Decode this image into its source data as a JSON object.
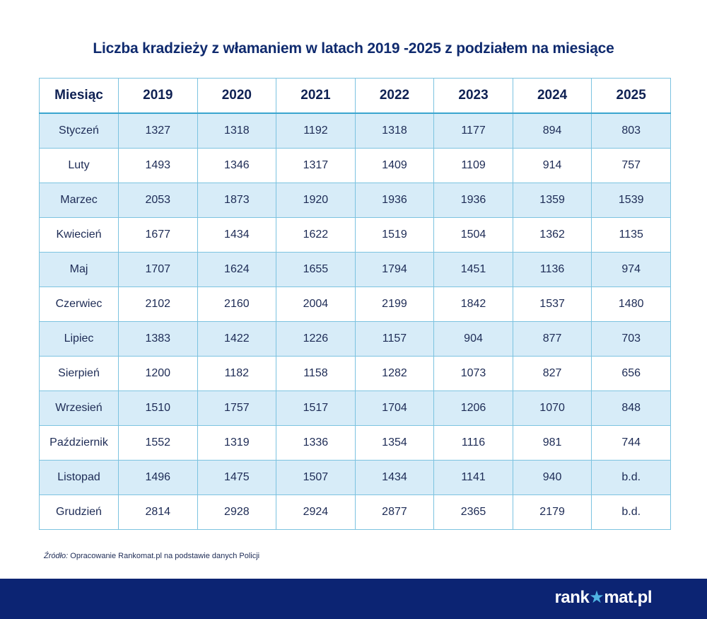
{
  "title": "Liczba kradzieży z włamaniem w latach 2019 -2025 z podziałem na miesiące",
  "chart_data": {
    "type": "table",
    "columns": [
      "Miesiąc",
      "2019",
      "2020",
      "2021",
      "2022",
      "2023",
      "2024",
      "2025"
    ],
    "rows": [
      [
        "Styczeń",
        "1327",
        "1318",
        "1192",
        "1318",
        "1177",
        "894",
        "803"
      ],
      [
        "Luty",
        "1493",
        "1346",
        "1317",
        "1409",
        "1109",
        "914",
        "757"
      ],
      [
        "Marzec",
        "2053",
        "1873",
        "1920",
        "1936",
        "1936",
        "1359",
        "1539"
      ],
      [
        "Kwiecień",
        "1677",
        "1434",
        "1622",
        "1519",
        "1504",
        "1362",
        "1135"
      ],
      [
        "Maj",
        "1707",
        "1624",
        "1655",
        "1794",
        "1451",
        "1136",
        "974"
      ],
      [
        "Czerwiec",
        "2102",
        "2160",
        "2004",
        "2199",
        "1842",
        "1537",
        "1480"
      ],
      [
        "Lipiec",
        "1383",
        "1422",
        "1226",
        "1157",
        "904",
        "877",
        "703"
      ],
      [
        "Sierpień",
        "1200",
        "1182",
        "1158",
        "1282",
        "1073",
        "827",
        "656"
      ],
      [
        "Wrzesień",
        "1510",
        "1757",
        "1517",
        "1704",
        "1206",
        "1070",
        "848"
      ],
      [
        "Październik",
        "1552",
        "1319",
        "1336",
        "1354",
        "1116",
        "981",
        "744"
      ],
      [
        "Listopad",
        "1496",
        "1475",
        "1507",
        "1434",
        "1141",
        "940",
        "b.d."
      ],
      [
        "Grudzień",
        "2814",
        "2928",
        "2924",
        "2877",
        "2365",
        "2179",
        "b.d."
      ]
    ]
  },
  "source": {
    "label": "Źródło:",
    "text": " Opracowanie Rankomat.pl na podstawie danych Policji"
  },
  "footer": {
    "logo": "rankomat.pl",
    "logo_parts": [
      "rank",
      "★",
      "mat.pl"
    ]
  },
  "colors": {
    "title": "#0f2a6e",
    "stripe": "#d7ecf8",
    "border": "#7cc3e0",
    "footer": "#0c2473"
  }
}
